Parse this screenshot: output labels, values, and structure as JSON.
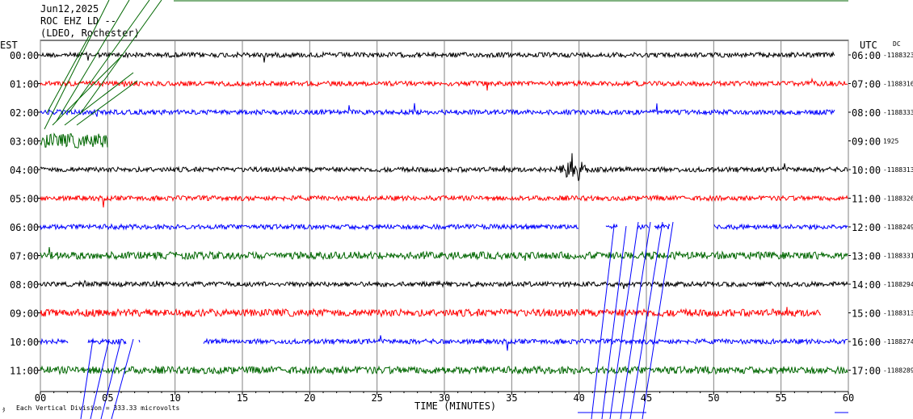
{
  "header": {
    "date": "Jun12,2025",
    "station": "ROC EHZ LD --",
    "network": "(LDEO, Rochester)"
  },
  "axes": {
    "left_title": "EST",
    "right_title": "UTC",
    "dc_title": "DC",
    "x_title": "TIME (MINUTES)",
    "x_ticks": [
      "00",
      "05",
      "10",
      "15",
      "20",
      "25",
      "30",
      "35",
      "40",
      "45",
      "50",
      "55",
      "60"
    ],
    "xlim": [
      0,
      60
    ]
  },
  "footer": {
    "scale_note": "Each Vertical Division = 333.33 microvolts",
    "corner_mark": "ﾀ"
  },
  "colors": {
    "black": "#000000",
    "red": "#ff0000",
    "blue": "#0000ff",
    "green": "#006600",
    "grid": "#808080"
  },
  "chart_data": {
    "type": "line",
    "title": "",
    "xlabel": "TIME (MINUTES)",
    "ylabel": "",
    "grid": true,
    "rows": [
      {
        "est": "00:00",
        "utc": "06:00",
        "dc": "-1188323",
        "color": "black",
        "end_min": 59
      },
      {
        "est": "01:00",
        "utc": "07:00",
        "dc": "-1188316",
        "color": "red",
        "end_min": 60
      },
      {
        "est": "02:00",
        "utc": "08:00",
        "dc": "-1188333",
        "color": "blue",
        "end_min": 59
      },
      {
        "est": "03:00",
        "utc": "09:00",
        "dc": "1925",
        "color": "green",
        "end_min": 5
      },
      {
        "est": "04:00",
        "utc": "10:00",
        "dc": "-1188313",
        "color": "black",
        "end_min": 60,
        "event_min": 39.5
      },
      {
        "est": "05:00",
        "utc": "11:00",
        "dc": "-1188326",
        "color": "red",
        "end_min": 60
      },
      {
        "est": "06:00",
        "utc": "12:00",
        "dc": "-1188249",
        "color": "blue",
        "end_min": 60,
        "gaps": [
          [
            40,
            42
          ],
          [
            42.9,
            44.3
          ],
          [
            45.2,
            45.6
          ],
          [
            46.8,
            50
          ]
        ]
      },
      {
        "est": "07:00",
        "utc": "13:00",
        "dc": "-1188331",
        "color": "green",
        "end_min": 60
      },
      {
        "est": "08:00",
        "utc": "14:00",
        "dc": "-1188294",
        "color": "black",
        "end_min": 60
      },
      {
        "est": "09:00",
        "utc": "15:00",
        "dc": "-1188313",
        "color": "red",
        "end_min": 58
      },
      {
        "est": "10:00",
        "utc": "16:00",
        "dc": "-1188274",
        "color": "blue",
        "end_min": 60,
        "gaps": [
          [
            2.1,
            3.5
          ],
          [
            6.4,
            7.3
          ],
          [
            7.4,
            12.1
          ]
        ]
      },
      {
        "est": "11:00",
        "utc": "17:00",
        "dc": "-1188289",
        "color": "green",
        "end_min": 60
      }
    ]
  }
}
